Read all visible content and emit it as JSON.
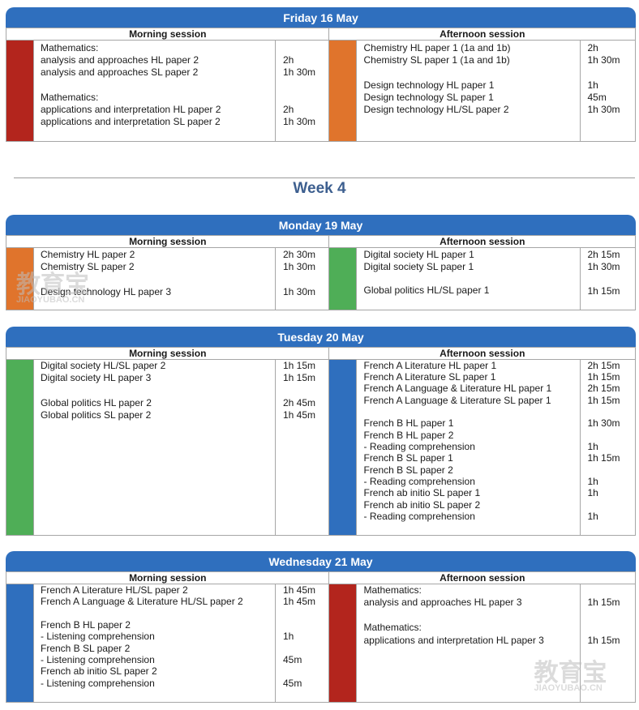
{
  "colors": {
    "header": "#2f6fbe",
    "red": "#b3251d",
    "orange": "#e0742c",
    "green": "#4fae57",
    "blue": "#2f6fbe"
  },
  "week_title": "Week 4",
  "watermark": {
    "cn": "教育宝",
    "url": "JIAOYUBAO.CN"
  },
  "days": [
    {
      "title": "Friday 16 May",
      "morning": {
        "label": "Morning session",
        "color": "red",
        "lines": [
          {
            "subject": "Mathematics:",
            "duration": ""
          },
          {
            "subject": "analysis and approaches HL paper 2",
            "duration": "2h"
          },
          {
            "subject": "analysis and approaches SL paper 2",
            "duration": "1h 30m"
          },
          {
            "subject": "",
            "duration": ""
          },
          {
            "subject": "Mathematics:",
            "duration": ""
          },
          {
            "subject": "applications and interpretation HL paper 2",
            "duration": "2h"
          },
          {
            "subject": "applications and interpretation SL paper 2",
            "duration": "1h 30m"
          }
        ]
      },
      "afternoon": {
        "label": "Afternoon session",
        "color": "orange",
        "lines": [
          {
            "subject": "Chemistry HL paper 1 (1a and 1b)",
            "duration": "2h"
          },
          {
            "subject": "Chemistry SL paper 1 (1a and 1b)",
            "duration": "1h 30m"
          },
          {
            "subject": "",
            "duration": ""
          },
          {
            "subject": "Design technology HL paper 1",
            "duration": "1h"
          },
          {
            "subject": "Design technology SL paper 1",
            "duration": "45m"
          },
          {
            "subject": "Design technology HL/SL paper 2",
            "duration": "1h 30m"
          }
        ]
      }
    },
    {
      "title": "Monday 19 May",
      "morning": {
        "label": "Morning session",
        "color": "orange",
        "lines": [
          {
            "subject": "Chemistry HL paper 2",
            "duration": "2h 30m"
          },
          {
            "subject": "Chemistry SL paper 2",
            "duration": "1h 30m"
          },
          {
            "subject": "",
            "duration": ""
          },
          {
            "subject": "Design technology HL paper 3",
            "duration": "1h 30m"
          }
        ]
      },
      "afternoon": {
        "label": "Afternoon session",
        "color": "green",
        "lines": [
          {
            "subject": "Digital society HL paper 1",
            "duration": "2h 15m"
          },
          {
            "subject": "Digital society SL paper 1",
            "duration": "1h 30m"
          },
          {
            "subject": "",
            "duration": ""
          },
          {
            "subject": "Global politics HL/SL paper 1",
            "duration": "1h 15m"
          }
        ]
      }
    },
    {
      "title": "Tuesday 20 May",
      "morning": {
        "label": "Morning session",
        "color": "green",
        "lines": [
          {
            "subject": "Digital society HL/SL paper 2",
            "duration": "1h 15m"
          },
          {
            "subject": "Digital society HL paper 3",
            "duration": "1h 15m"
          },
          {
            "subject": "",
            "duration": ""
          },
          {
            "subject": "Global politics HL paper 2",
            "duration": "2h 45m"
          },
          {
            "subject": "Global politics SL paper 2",
            "duration": "1h 45m"
          }
        ]
      },
      "afternoon": {
        "label": "Afternoon session",
        "color": "blue",
        "lines": [
          {
            "subject": "French A Literature HL paper 1",
            "duration": "2h 15m"
          },
          {
            "subject": "French A Literature SL paper 1",
            "duration": "1h 15m"
          },
          {
            "subject": "French A Language & Literature HL paper 1",
            "duration": "2h 15m"
          },
          {
            "subject": "French A Language & Literature SL paper 1",
            "duration": "1h 15m"
          },
          {
            "subject": "",
            "duration": ""
          },
          {
            "subject": "French B HL paper 1",
            "duration": "1h 30m"
          },
          {
            "subject": "French B HL paper 2",
            "duration": ""
          },
          {
            "subject": "- Reading comprehension",
            "duration": "1h"
          },
          {
            "subject": "French B SL paper 1",
            "duration": "1h 15m"
          },
          {
            "subject": "French B SL paper 2",
            "duration": ""
          },
          {
            "subject": "- Reading comprehension",
            "duration": "1h"
          },
          {
            "subject": "French ab initio SL paper 1",
            "duration": "1h"
          },
          {
            "subject": "French ab initio SL paper 2",
            "duration": ""
          },
          {
            "subject": "- Reading comprehension",
            "duration": "1h"
          }
        ]
      }
    },
    {
      "title": "Wednesday 21 May",
      "morning": {
        "label": "Morning session",
        "color": "blue",
        "lines": [
          {
            "subject": "French A Literature HL/SL paper 2",
            "duration": "1h 45m"
          },
          {
            "subject": "French A Language & Literature HL/SL paper 2",
            "duration": "1h 45m"
          },
          {
            "subject": "",
            "duration": ""
          },
          {
            "subject": "French B HL paper 2",
            "duration": ""
          },
          {
            "subject": "- Listening comprehension",
            "duration": "1h"
          },
          {
            "subject": "French B SL paper 2",
            "duration": ""
          },
          {
            "subject": "- Listening comprehension",
            "duration": "45m"
          },
          {
            "subject": "French ab initio SL paper 2",
            "duration": ""
          },
          {
            "subject": "- Listening comprehension",
            "duration": "45m"
          }
        ]
      },
      "afternoon": {
        "label": "Afternoon session",
        "color": "red",
        "lines": [
          {
            "subject": "Mathematics:",
            "duration": ""
          },
          {
            "subject": "analysis and approaches HL paper 3",
            "duration": "1h 15m"
          },
          {
            "subject": "",
            "duration": ""
          },
          {
            "subject": "Mathematics:",
            "duration": ""
          },
          {
            "subject": "applications and interpretation HL paper 3",
            "duration": "1h 15m"
          }
        ]
      }
    }
  ]
}
